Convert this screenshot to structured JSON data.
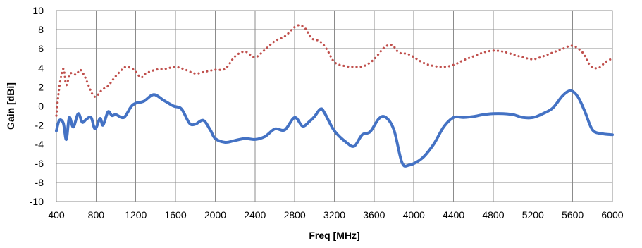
{
  "chart_data": {
    "type": "line",
    "title": "",
    "xlabel": "Freq [MHz]",
    "ylabel": "Gain [dBi]",
    "xlim": [
      400,
      6000
    ],
    "ylim": [
      -10,
      10
    ],
    "x_ticks": [
      400,
      800,
      1200,
      1600,
      2000,
      2400,
      2800,
      3200,
      3600,
      4000,
      4400,
      4800,
      5200,
      5600,
      6000
    ],
    "y_ticks": [
      -10,
      -8,
      -6,
      -4,
      -2,
      0,
      2,
      4,
      6,
      8,
      10
    ],
    "grid": true,
    "legend": "none",
    "series": [
      {
        "style": "solid",
        "color": "#4472c4",
        "points": [
          [
            400,
            -2.6
          ],
          [
            430,
            -1.5
          ],
          [
            470,
            -1.8
          ],
          [
            500,
            -3.5
          ],
          [
            530,
            -1.2
          ],
          [
            570,
            -2.2
          ],
          [
            620,
            -0.8
          ],
          [
            660,
            -1.7
          ],
          [
            700,
            -1.4
          ],
          [
            750,
            -1.2
          ],
          [
            790,
            -2.4
          ],
          [
            840,
            -1.3
          ],
          [
            870,
            -2.0
          ],
          [
            920,
            -0.6
          ],
          [
            960,
            -1.0
          ],
          [
            1000,
            -0.9
          ],
          [
            1080,
            -1.2
          ],
          [
            1150,
            -0.1
          ],
          [
            1200,
            0.3
          ],
          [
            1280,
            0.5
          ],
          [
            1380,
            1.2
          ],
          [
            1480,
            0.6
          ],
          [
            1580,
            0.0
          ],
          [
            1660,
            -0.3
          ],
          [
            1740,
            -1.8
          ],
          [
            1800,
            -1.9
          ],
          [
            1880,
            -1.5
          ],
          [
            1950,
            -2.5
          ],
          [
            2000,
            -3.4
          ],
          [
            2100,
            -3.8
          ],
          [
            2200,
            -3.6
          ],
          [
            2300,
            -3.4
          ],
          [
            2400,
            -3.5
          ],
          [
            2500,
            -3.2
          ],
          [
            2600,
            -2.4
          ],
          [
            2700,
            -2.5
          ],
          [
            2800,
            -1.2
          ],
          [
            2880,
            -2.1
          ],
          [
            2950,
            -1.6
          ],
          [
            3000,
            -1.1
          ],
          [
            3060,
            -0.3
          ],
          [
            3100,
            -0.7
          ],
          [
            3200,
            -2.6
          ],
          [
            3320,
            -3.8
          ],
          [
            3400,
            -4.2
          ],
          [
            3480,
            -3.0
          ],
          [
            3560,
            -2.7
          ],
          [
            3650,
            -1.3
          ],
          [
            3720,
            -1.2
          ],
          [
            3800,
            -2.5
          ],
          [
            3880,
            -5.9
          ],
          [
            3950,
            -6.2
          ],
          [
            4080,
            -5.5
          ],
          [
            4200,
            -4.0
          ],
          [
            4300,
            -2.2
          ],
          [
            4400,
            -1.2
          ],
          [
            4500,
            -1.2
          ],
          [
            4600,
            -1.1
          ],
          [
            4700,
            -0.9
          ],
          [
            4800,
            -0.8
          ],
          [
            4900,
            -0.8
          ],
          [
            5000,
            -0.9
          ],
          [
            5100,
            -1.2
          ],
          [
            5200,
            -1.2
          ],
          [
            5300,
            -0.8
          ],
          [
            5400,
            -0.2
          ],
          [
            5500,
            1.1
          ],
          [
            5580,
            1.6
          ],
          [
            5650,
            1.0
          ],
          [
            5720,
            -0.5
          ],
          [
            5800,
            -2.5
          ],
          [
            5900,
            -2.9
          ],
          [
            6000,
            -3.0
          ]
        ]
      },
      {
        "style": "dotted",
        "color": "#c0504d",
        "points": [
          [
            400,
            -1.0
          ],
          [
            430,
            2.0
          ],
          [
            470,
            3.9
          ],
          [
            500,
            2.2
          ],
          [
            540,
            3.4
          ],
          [
            600,
            3.3
          ],
          [
            640,
            3.8
          ],
          [
            690,
            3.0
          ],
          [
            760,
            1.3
          ],
          [
            800,
            1.0
          ],
          [
            860,
            1.7
          ],
          [
            920,
            2.1
          ],
          [
            980,
            2.9
          ],
          [
            1040,
            3.6
          ],
          [
            1100,
            4.1
          ],
          [
            1180,
            3.8
          ],
          [
            1250,
            3.0
          ],
          [
            1300,
            3.4
          ],
          [
            1400,
            3.8
          ],
          [
            1500,
            3.9
          ],
          [
            1600,
            4.1
          ],
          [
            1700,
            3.8
          ],
          [
            1800,
            3.4
          ],
          [
            1900,
            3.6
          ],
          [
            2000,
            3.8
          ],
          [
            2100,
            3.9
          ],
          [
            2200,
            5.2
          ],
          [
            2300,
            5.7
          ],
          [
            2400,
            5.1
          ],
          [
            2500,
            5.9
          ],
          [
            2600,
            6.8
          ],
          [
            2700,
            7.3
          ],
          [
            2820,
            8.4
          ],
          [
            2900,
            8.2
          ],
          [
            2970,
            7.1
          ],
          [
            3050,
            6.8
          ],
          [
            3120,
            6.0
          ],
          [
            3200,
            4.6
          ],
          [
            3300,
            4.2
          ],
          [
            3400,
            4.1
          ],
          [
            3500,
            4.2
          ],
          [
            3600,
            4.9
          ],
          [
            3700,
            6.1
          ],
          [
            3780,
            6.4
          ],
          [
            3850,
            5.6
          ],
          [
            3950,
            5.4
          ],
          [
            4100,
            4.5
          ],
          [
            4200,
            4.2
          ],
          [
            4300,
            4.1
          ],
          [
            4400,
            4.3
          ],
          [
            4500,
            4.8
          ],
          [
            4600,
            5.2
          ],
          [
            4700,
            5.6
          ],
          [
            4800,
            5.8
          ],
          [
            4900,
            5.7
          ],
          [
            5000,
            5.4
          ],
          [
            5100,
            5.1
          ],
          [
            5200,
            4.9
          ],
          [
            5300,
            5.2
          ],
          [
            5400,
            5.6
          ],
          [
            5500,
            6.0
          ],
          [
            5600,
            6.3
          ],
          [
            5700,
            5.6
          ],
          [
            5780,
            4.2
          ],
          [
            5860,
            4.0
          ],
          [
            5930,
            4.6
          ],
          [
            6000,
            5.0
          ]
        ]
      }
    ]
  }
}
